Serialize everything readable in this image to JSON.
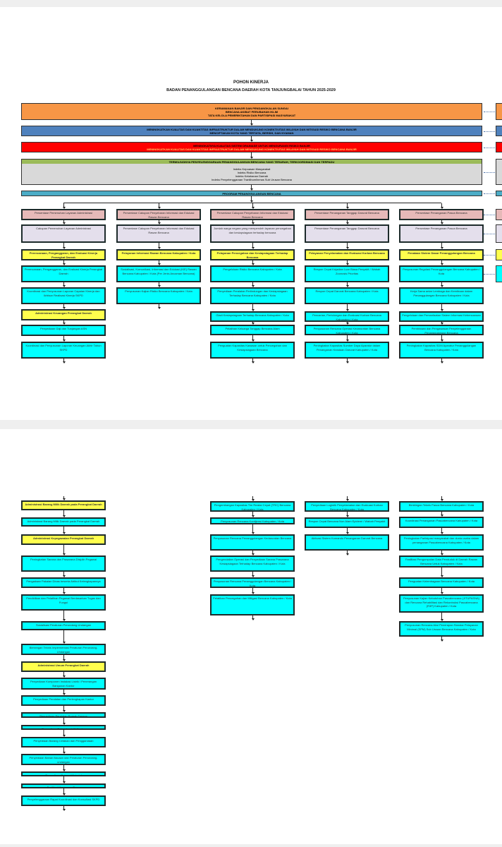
{
  "document": {
    "title": "POHON KINERJA",
    "subtitle": "BADAN PENANGGULANGAN BENCANA DAERAH KOTA TANJUNGBALAI TAHUN 2025-2029"
  },
  "colors": {
    "orange": "#f79646",
    "blue": "#4f81bd",
    "red": "#ff0000",
    "green": "#9bbb59",
    "grey": "#d9d9d9",
    "program": "#4bacc6",
    "pink": "#e6b9b8",
    "lavender": "#e4dfec",
    "yellow": "#ffff4d",
    "cyan": "#00ffff"
  },
  "banners": {
    "issues": [
      "KERAWANAN BANJIR DAN PENDANGKALAN SUNGAI",
      "BENCANA AKIBAT PERUBAHAN IKLIM",
      "TATA KELOLA PEMERINTAHAN DAN PARTISIPASI MASYARAKAT"
    ],
    "mission": [
      "MENINGKATKAN KUALITAS DAN KUANTITAS INFRASTRUKTUR DALAM MENDUKUNG KONEKTIVITAS WILAYAH DAN MITIGASI RESIKO BENCANA BANJIR",
      "MENCIPTAKAN KOTA YANG TERTATA, BERSIH, DAN NYAMAN"
    ],
    "goal": [
      "MENINGKATNYA KUALITAS SISTEM DRAINASE UNTUK MENGURANGI RISIKO BANJIR",
      "MENINGKATKAN KUALITAS DAN KUANTITAS INFRASTRUKTUR DALAM MENDUKUNG KONEKTIVITAS WILAYAH DAN MITIGASI RESIKO BENCANA BANJIR"
    ],
    "objective": "TERWUJUDNYA PENYELENGGARAAN PENANGGULANGAN BENCANA YANG TERARAH, TERKOORDINASI DAN TERPADU",
    "indicators": [
      "Indeks Kepuasan Masyarakat",
      "Indeks Risiko Bencana",
      "Indeks Ketahanan Daerah",
      "Indeks Penyelenggaraan Trantibumlinmas Sub Urusan Bencana"
    ],
    "program": "PROGRAM PENANGGULANGAN BENCANA"
  },
  "page1_columns": [
    [
      {
        "type": "pink",
        "text": "Persentase Pemenuhan Layanan Administrasi"
      },
      {
        "type": "lav",
        "text": "Cakupan Pemenuhan Layanan Administrasi"
      },
      {
        "type": "yel",
        "text": "Perencanaan, Penganggaran, dan Evaluasi Kinerja Perangkat Daerah"
      },
      {
        "type": "cyan",
        "text": "Perencanaan, Penganggaran, dan Evaluasi Kinerja Perangkat Daerah"
      },
      {
        "type": "cyan",
        "text": "Koordinasi dan Penyusunan Laporan Capaian Kinerja dan Ikhtisar Realisasi Kinerja SKPD"
      },
      {
        "type": "yel",
        "text": "Administrasi Keuangan Perangkat Daerah"
      },
      {
        "type": "cyan",
        "text": "Penyediaan Gaji dan Tunjangan ASN"
      },
      {
        "type": "cyan",
        "text": "Koordinasi dan Penyusunan Laporan Keuangan Akhir Tahun SKPD"
      }
    ],
    [
      {
        "type": "pink",
        "text": "Persentase Cakupan Penyebaran Informasi dan Edukasi Rawan Bencana"
      },
      {
        "type": "lav",
        "text": "Persentase Cakupan Penyebaran Informasi dan Edukasi Rawan Bencana"
      },
      {
        "type": "yel",
        "text": "Pelayanan Informasi Rawan Bencana Kabupaten / Kota"
      },
      {
        "type": "cyan",
        "text": "Sosialisasi, Komunikasi, Informasi dan Edukasi (KIE) Rawan Bencana Kabupaten / Kota (Per Jenis Ancaman Bencana)"
      },
      {
        "type": "cyan",
        "text": "Penyusunan Kajian Risiko Bencana Kabupaten / Kota"
      }
    ],
    [
      {
        "type": "pink",
        "text": "Persentase Cakupan Penyebaran Informasi dan Edukasi Rawan Bencana"
      },
      {
        "type": "lav",
        "text": "Jumlah warga negara yang memperoleh layanan pencegahan dan kesiapsiagaan terhadap bencana"
      },
      {
        "type": "yel",
        "text": "Pelayanan Pencegahan dan Kesiapsiagaan Terhadap Bencana"
      },
      {
        "type": "cyan",
        "text": "Pengelolaan Risiko Bencana Kabupaten / Kota"
      },
      {
        "type": "cyan",
        "text": "Penyediaan Peralatan Perlindungan dan Kesiapsiagaan Terhadap Bencana Kabupaten / Kota"
      },
      {
        "type": "cyan",
        "text": "Gladi Kesiapsiagaan Terhadap Bencana Kabupaten / Kota"
      },
      {
        "type": "cyan",
        "text": "Pelatihan Keluarga Tanggap Bencana Alam"
      },
      {
        "type": "cyan",
        "text": "Penguatan Kapasitas Kawasan untuk Pencegahan dan Kesiapsiagaan Bencana"
      }
    ],
    [
      {
        "type": "pink",
        "text": "Persentase Penanganan Tanggap Darurat Bencana"
      },
      {
        "type": "lav",
        "text": "Persentase Penanganan Tanggap Darurat Bencana"
      },
      {
        "type": "yel",
        "text": "Pelayanan Penyelamatan dan Evakuasi Korban Bencana"
      },
      {
        "type": "cyan",
        "text": "Respon Cepat Kejadian Luar Biasa Penyakit / Wabah Zoonosis Prioritas"
      },
      {
        "type": "cyan",
        "text": "Respon Cepat Darurat Bencana Kabupaten / Kota"
      },
      {
        "type": "cyan",
        "text": "Pencarian, Pertolongan dan Evakuasi Korban Bencana Kabupaten / Kota"
      },
      {
        "type": "cyan",
        "text": "Penyusunan Rencana Operasi Kedaruratan Bencana Kabupaten / Kota"
      },
      {
        "type": "cyan",
        "text": "Peningkatan Kapasitas Sumber Daya Aparatur dalam Penanganan Keadaan Darurat Kabupaten / Kota"
      }
    ],
    [
      {
        "type": "pink",
        "text": "Persentase Penanganan Pasca Bencana"
      },
      {
        "type": "lav",
        "text": "Persentase Penanganan Pasca Bencana"
      },
      {
        "type": "yel",
        "text": "Penataan Sistem Dasar Penanggulangan Bencana"
      },
      {
        "type": "cyan",
        "text": "Penyusunan Regulasi Penanggulangan Bencana Kabupaten / Kota"
      },
      {
        "type": "cyan",
        "text": "Kerja Sama antar Lembaga dan Kemitraan dalam Penanggulangan Bencana Kabupaten / Kota"
      },
      {
        "type": "cyan",
        "text": "Pengelolaan dan Pemanfaatan Sistem Informasi Kebencanaan"
      },
      {
        "type": "cyan",
        "text": "Pembinaan dan Pengawasan Penyelenggaraan Penanggulangan Bencana"
      },
      {
        "type": "cyan",
        "text": "Peningkatan Kapasitas SDM Aparatur Penanggulangan Bencana Kabupaten / Kota"
      }
    ]
  ],
  "page2_columns": [
    [
      {
        "type": "yel",
        "text": "Administrasi Barang Milik Daerah pada Perangkat Daerah"
      },
      {
        "type": "cyan",
        "text": "Administrasi Barang Milik Daerah pada Perangkat Daerah"
      },
      {
        "type": "yel",
        "text": "Administrasi Kepegawaian Perangkat Daerah"
      },
      {
        "type": "cyan",
        "text": "Peningkatan Sarana dan Prasarana Disiplin Pegawai"
      },
      {
        "type": "cyan",
        "text": "Pengadaan Pakaian Dinas beserta Atribut Kelengkapannya"
      },
      {
        "type": "cyan",
        "text": "Pendidikan dan Pelatihan Pegawai Berdasarkan Tugas dan Fungsi"
      },
      {
        "type": "cyan",
        "text": "Sosialisasi Peraturan Perundang-Undangan"
      },
      {
        "type": "cyan",
        "text": "Bimbingan Teknis Implementasi Peraturan Perundang-Undangan"
      },
      {
        "type": "yel",
        "text": "Administrasi Umum Perangkat Daerah"
      },
      {
        "type": "cyan",
        "text": "Penyediaan Komponen Instalasi Listrik / Penerangan Bangunan Kantor"
      },
      {
        "type": "cyan",
        "text": "Penyediaan Peralatan dan Perlengkapan Kantor"
      },
      {
        "type": "cyan",
        "text": "Penyediaan Peralatan Rumah Tangga"
      },
      {
        "type": "cyan",
        "text": "Penyediaan Bahan Logistik Kantor"
      },
      {
        "type": "cyan",
        "text": "Penyediaan Barang Cetakan dan Penggandaan"
      },
      {
        "type": "cyan",
        "text": "Penyediaan Bahan Bacaan dan Peraturan Perundang-undangan"
      },
      {
        "type": "cyan",
        "text": "Penyediaan Bahan / Material"
      },
      {
        "type": "cyan",
        "text": "Fasilitasi Kunjungan Tamu"
      },
      {
        "type": "cyan",
        "text": "Penyelenggaraan Rapat Koordinasi dan Konsultasi SKPD"
      }
    ],
    [],
    [
      {
        "type": "cyan",
        "text": "Pengembangan Kapasitas Tim Reaksi Cepat (TRC) Bencana Kabupaten / Kota"
      },
      {
        "type": "cyan",
        "text": "Penyusunan Rencana Kontijensi Kabupaten / Kota"
      },
      {
        "type": "cyan",
        "text": "Penyusunan Rencana Penanggulangan Kedaruratan Bencana"
      },
      {
        "type": "cyan",
        "text": "Pengendalian Operasi dan Penyediaan Sarana Prasarana Kesiapsiagaan Terhadap Bencana Kabupaten / Kota"
      },
      {
        "type": "cyan",
        "text": "Penyusunan Rencana Penanggulangan Bencana Kabupaten / Kota"
      },
      {
        "type": "cyan",
        "text": "Pelatihan Pencegahan dan Mitigasi Bencana Kabupaten / Kota"
      }
    ],
    [
      {
        "type": "cyan",
        "text": "Penyediaan Logistik Penyelamatan dan Evakuasi Korban Bencana Kabupaten / Kota"
      },
      {
        "type": "cyan",
        "text": "Respon Cepat Bencana Non Alam Epidemi / Wabah Penyakit"
      },
      {
        "type": "cyan",
        "text": "Aktivasi Sistem Komando Penanganan Darurat Bencana"
      }
    ],
    [
      {
        "type": "cyan",
        "text": "Bimbingan Teknis Pasca Bencana Kabupaten / Kota"
      },
      {
        "type": "cyan",
        "text": "Koordinasi Penanganan Pascabencana Kabupaten / Kota"
      },
      {
        "type": "cyan",
        "text": "Peningkatan Partisipasi masyarakat dan dunia usaha dalam penanganan Pascabencana Kabupaten / Kota"
      },
      {
        "type": "cyan",
        "text": "Fasilitasi Pengumpulan Data Penduduk di Daerah Rawan Bencana Untuk Kabupaten / Kota"
      },
      {
        "type": "cyan",
        "text": "Penguatan Kelembagaan Bencana Kabupaten / Kota"
      },
      {
        "type": "cyan",
        "text": "Penyusunan Kajian Kebutuhan Pascabencana (JITUPASNA) dan Rencana Rehabilitasi dan Rekontruksi Pascabencana (R3P) Kabupaten / Kota"
      },
      {
        "type": "cyan",
        "text": "Penyusunan Rencana Aksi Penerapan Standar Pelayanan Minimal (SPM) Sub Urusan Bencana Kabupaten / Kota"
      }
    ]
  ]
}
